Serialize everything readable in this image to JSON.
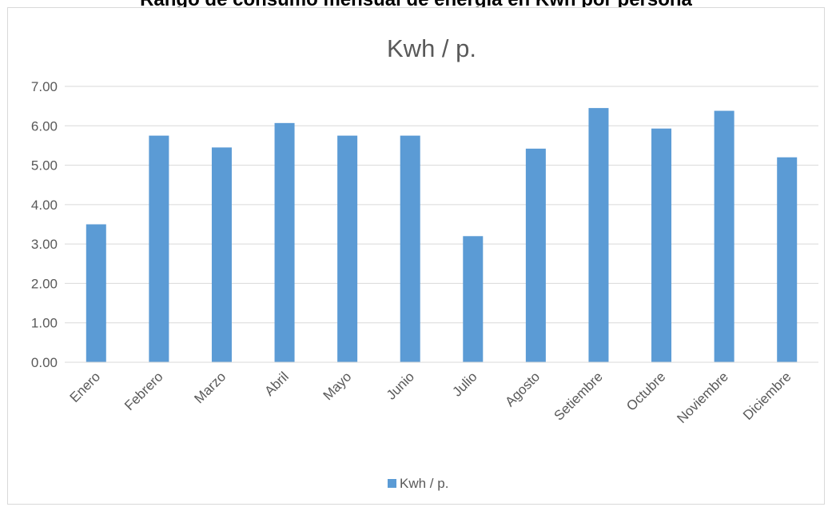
{
  "header_text": "Rango de consumo mensual de energía en Kwh por persona",
  "colors": {
    "bar": "#5b9bd5",
    "gridline": "#d9d9d9",
    "text": "#595959",
    "frame_border": "#d9d9d9"
  },
  "chart_data": {
    "type": "bar",
    "title": "Kwh / p.",
    "xlabel": "",
    "ylabel": "",
    "categories": [
      "Enero",
      "Febrero",
      "Marzo",
      "Abril",
      "Mayo",
      "Junio",
      "Julio",
      "Agosto",
      "Setiembre",
      "Octubre",
      "Noviembre",
      "Diciembre"
    ],
    "series": [
      {
        "name": "Kwh / p.",
        "values": [
          3.5,
          5.75,
          5.45,
          6.07,
          5.75,
          5.75,
          3.2,
          5.42,
          6.45,
          5.93,
          6.38,
          5.2
        ]
      }
    ],
    "ylim": [
      0,
      7
    ],
    "yticks": [
      "0.00",
      "1.00",
      "2.00",
      "3.00",
      "4.00",
      "5.00",
      "6.00",
      "7.00"
    ],
    "grid": true,
    "legend_position": "bottom"
  }
}
